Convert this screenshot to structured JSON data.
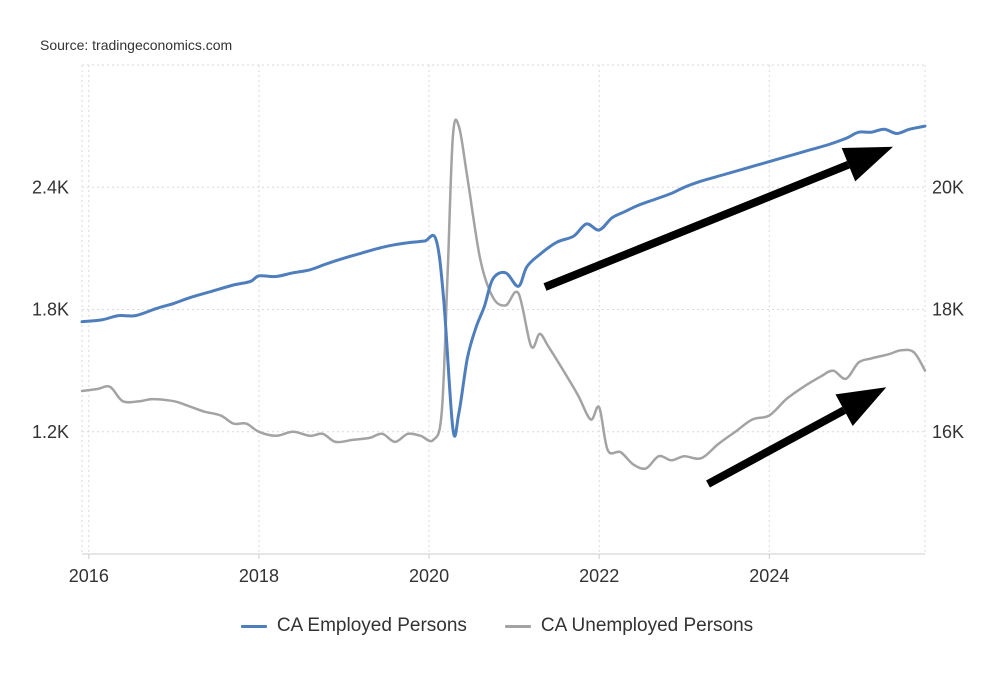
{
  "source": "Source: tradingeconomics.com",
  "colors": {
    "employed": "#4f7ebd",
    "unemployed": "#a3a3a3",
    "arrow": "#000000",
    "grid": "#d9d9d9"
  },
  "legend": [
    {
      "label": "CA Employed Persons",
      "color": "#4f7ebd"
    },
    {
      "label": "CA Unemployed Persons",
      "color": "#a3a3a3"
    }
  ],
  "chart_data": {
    "type": "line",
    "title": "",
    "xlabel": "",
    "x_ticks": [
      "2016",
      "2018",
      "2020",
      "2022",
      "2024"
    ],
    "y_left_ticks": [
      "1.2K",
      "1.8K",
      "2.4K"
    ],
    "y_right_ticks": [
      "16K",
      "18K",
      "20K"
    ],
    "xlim": [
      2015.92,
      2025.83
    ],
    "y_left_lim": [
      600,
      3000
    ],
    "y_right_lim": [
      14000,
      22000
    ],
    "grid": true,
    "legend_position": "bottom",
    "annotations": [
      "arrow-up-right-upper",
      "arrow-up-right-lower"
    ],
    "series": [
      {
        "name": "CA Unemployed Persons",
        "axis": "left",
        "color": "#a3a3a3",
        "points": [
          [
            2015.92,
            1400
          ],
          [
            2016.1,
            1410
          ],
          [
            2016.25,
            1420
          ],
          [
            2016.4,
            1350
          ],
          [
            2016.6,
            1350
          ],
          [
            2016.75,
            1360
          ],
          [
            2017.0,
            1350
          ],
          [
            2017.15,
            1330
          ],
          [
            2017.35,
            1300
          ],
          [
            2017.55,
            1280
          ],
          [
            2017.7,
            1240
          ],
          [
            2017.85,
            1240
          ],
          [
            2018.0,
            1200
          ],
          [
            2018.2,
            1180
          ],
          [
            2018.4,
            1200
          ],
          [
            2018.6,
            1180
          ],
          [
            2018.75,
            1190
          ],
          [
            2018.9,
            1150
          ],
          [
            2019.1,
            1160
          ],
          [
            2019.3,
            1170
          ],
          [
            2019.45,
            1190
          ],
          [
            2019.6,
            1150
          ],
          [
            2019.75,
            1190
          ],
          [
            2019.9,
            1180
          ],
          [
            2020.05,
            1160
          ],
          [
            2020.15,
            1300
          ],
          [
            2020.22,
            2000
          ],
          [
            2020.28,
            2650
          ],
          [
            2020.35,
            2700
          ],
          [
            2020.45,
            2450
          ],
          [
            2020.6,
            2050
          ],
          [
            2020.75,
            1860
          ],
          [
            2020.9,
            1820
          ],
          [
            2021.05,
            1880
          ],
          [
            2021.2,
            1620
          ],
          [
            2021.3,
            1680
          ],
          [
            2021.4,
            1620
          ],
          [
            2021.55,
            1520
          ],
          [
            2021.75,
            1380
          ],
          [
            2021.9,
            1260
          ],
          [
            2022.0,
            1320
          ],
          [
            2022.1,
            1110
          ],
          [
            2022.25,
            1100
          ],
          [
            2022.4,
            1040
          ],
          [
            2022.55,
            1020
          ],
          [
            2022.7,
            1080
          ],
          [
            2022.85,
            1060
          ],
          [
            2023.0,
            1080
          ],
          [
            2023.2,
            1070
          ],
          [
            2023.4,
            1140
          ],
          [
            2023.6,
            1200
          ],
          [
            2023.8,
            1260
          ],
          [
            2024.0,
            1280
          ],
          [
            2024.2,
            1360
          ],
          [
            2024.4,
            1420
          ],
          [
            2024.6,
            1470
          ],
          [
            2024.75,
            1500
          ],
          [
            2024.9,
            1460
          ],
          [
            2025.05,
            1540
          ],
          [
            2025.2,
            1560
          ],
          [
            2025.4,
            1580
          ],
          [
            2025.55,
            1600
          ],
          [
            2025.7,
            1590
          ],
          [
            2025.83,
            1500
          ]
        ]
      },
      {
        "name": "CA Employed Persons",
        "axis": "right",
        "color": "#4f7ebd",
        "points": [
          [
            2015.92,
            17800
          ],
          [
            2016.15,
            17830
          ],
          [
            2016.35,
            17900
          ],
          [
            2016.55,
            17900
          ],
          [
            2016.8,
            18020
          ],
          [
            2017.0,
            18100
          ],
          [
            2017.2,
            18200
          ],
          [
            2017.45,
            18300
          ],
          [
            2017.7,
            18400
          ],
          [
            2017.9,
            18460
          ],
          [
            2018.0,
            18550
          ],
          [
            2018.2,
            18540
          ],
          [
            2018.4,
            18600
          ],
          [
            2018.6,
            18650
          ],
          [
            2018.8,
            18750
          ],
          [
            2019.0,
            18840
          ],
          [
            2019.2,
            18920
          ],
          [
            2019.4,
            19000
          ],
          [
            2019.6,
            19060
          ],
          [
            2019.8,
            19100
          ],
          [
            2019.95,
            19120
          ],
          [
            2020.08,
            19150
          ],
          [
            2020.17,
            18200
          ],
          [
            2020.28,
            16050
          ],
          [
            2020.35,
            16300
          ],
          [
            2020.45,
            17200
          ],
          [
            2020.55,
            17700
          ],
          [
            2020.65,
            18050
          ],
          [
            2020.75,
            18500
          ],
          [
            2020.9,
            18600
          ],
          [
            2021.05,
            18380
          ],
          [
            2021.15,
            18700
          ],
          [
            2021.3,
            18900
          ],
          [
            2021.5,
            19100
          ],
          [
            2021.7,
            19200
          ],
          [
            2021.85,
            19400
          ],
          [
            2022.0,
            19300
          ],
          [
            2022.15,
            19500
          ],
          [
            2022.3,
            19600
          ],
          [
            2022.45,
            19700
          ],
          [
            2022.65,
            19800
          ],
          [
            2022.85,
            19900
          ],
          [
            2023.0,
            20000
          ],
          [
            2023.2,
            20100
          ],
          [
            2023.45,
            20200
          ],
          [
            2023.7,
            20300
          ],
          [
            2023.95,
            20400
          ],
          [
            2024.2,
            20500
          ],
          [
            2024.45,
            20600
          ],
          [
            2024.7,
            20700
          ],
          [
            2024.9,
            20800
          ],
          [
            2025.05,
            20900
          ],
          [
            2025.2,
            20900
          ],
          [
            2025.35,
            20950
          ],
          [
            2025.5,
            20880
          ],
          [
            2025.65,
            20950
          ],
          [
            2025.83,
            21000
          ]
        ]
      }
    ]
  }
}
